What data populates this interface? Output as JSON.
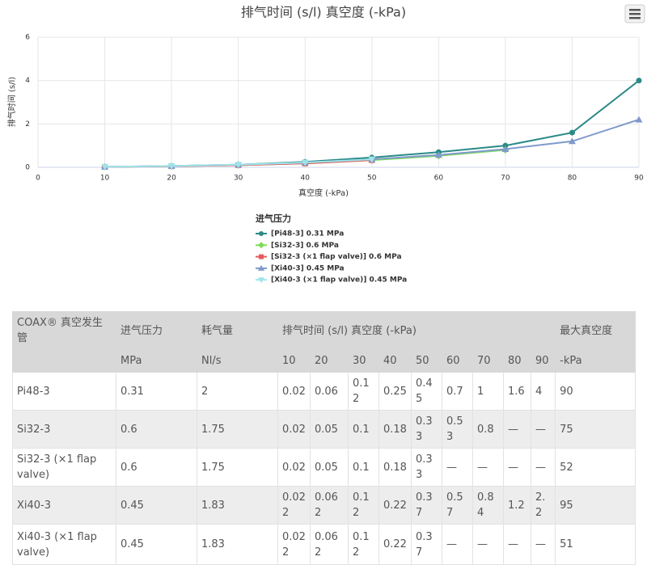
{
  "chart_data": {
    "type": "line",
    "title": "排气时间 (s/l) 真空度 (-kPa)",
    "x_label": "真空度 (-kPa)",
    "y_label": "排气时间 (s/l)",
    "legend_title": "进气压力",
    "x": [
      10,
      20,
      30,
      40,
      50,
      60,
      70,
      80,
      90
    ],
    "xlim": [
      0,
      90
    ],
    "xticks": [
      0,
      10,
      20,
      30,
      40,
      50,
      60,
      70,
      80,
      90
    ],
    "ylim": [
      0,
      6
    ],
    "yticks": [
      0,
      2,
      4,
      6
    ],
    "grid": true,
    "series": [
      {
        "name": "[Pi48-3] 0.31 MPa",
        "color": "#2b8a87",
        "marker": "circle",
        "values": [
          0.02,
          0.06,
          0.12,
          0.25,
          0.45,
          0.7,
          1,
          1.6,
          4
        ]
      },
      {
        "name": "[Si32-3] 0.6 MPa",
        "color": "#7ddc5a",
        "marker": "diamond",
        "values": [
          0.02,
          0.05,
          0.1,
          0.18,
          0.33,
          0.53,
          0.8,
          null,
          null
        ]
      },
      {
        "name": "[Si32-3 (×1 flap valve)] 0.6 MPa",
        "color": "#e65c5c",
        "marker": "square",
        "values": [
          0.02,
          0.05,
          0.1,
          0.18,
          0.33,
          null,
          null,
          null,
          null
        ]
      },
      {
        "name": "[Xi40-3] 0.45 MPa",
        "color": "#7f9acb",
        "marker": "triangle",
        "values": [
          0.022,
          0.062,
          0.12,
          0.22,
          0.37,
          0.57,
          0.84,
          1.2,
          2.2
        ]
      },
      {
        "name": "[Xi40-3 (×1 flap valve)] 0.45 MPa",
        "color": "#9ee3ea",
        "marker": "triangle-down",
        "values": [
          0.022,
          0.062,
          0.12,
          0.22,
          0.37,
          null,
          null,
          null,
          null
        ]
      }
    ]
  },
  "table": {
    "header": [
      "COAX® 真空发生管",
      "进气压力",
      "耗气量",
      "排气时间 (s/l) 真空度 (-kPa)",
      "最大真空度"
    ],
    "units": [
      "MPa",
      "Nl/s",
      "10",
      "20",
      "30",
      "40",
      "50",
      "60",
      "70",
      "80",
      "90",
      "-kPa"
    ],
    "rows": [
      [
        "Pi48-3",
        "0.31",
        "2",
        "0.02",
        "0.06",
        "0.12",
        "0.25",
        "0.45",
        "0.7",
        "1",
        "1.6",
        "4",
        "90"
      ],
      [
        "Si32-3",
        "0.6",
        "1.75",
        "0.02",
        "0.05",
        "0.1",
        "0.18",
        "0.33",
        "0.53",
        "0.8",
        "—",
        "—",
        "75"
      ],
      [
        "Si32-3 (×1 flap valve)",
        "0.6",
        "1.75",
        "0.02",
        "0.05",
        "0.1",
        "0.18",
        "0.33",
        "—",
        "—",
        "—",
        "—",
        "52"
      ],
      [
        "Xi40-3",
        "0.45",
        "1.83",
        "0.022",
        "0.062",
        "0.12",
        "0.22",
        "0.37",
        "0.57",
        "0.84",
        "1.2",
        "2.2",
        "95"
      ],
      [
        "Xi40-3 (×1 flap valve)",
        "0.45",
        "1.83",
        "0.022",
        "0.062",
        "0.12",
        "0.22",
        "0.37",
        "—",
        "—",
        "—",
        "—",
        "51"
      ]
    ]
  }
}
